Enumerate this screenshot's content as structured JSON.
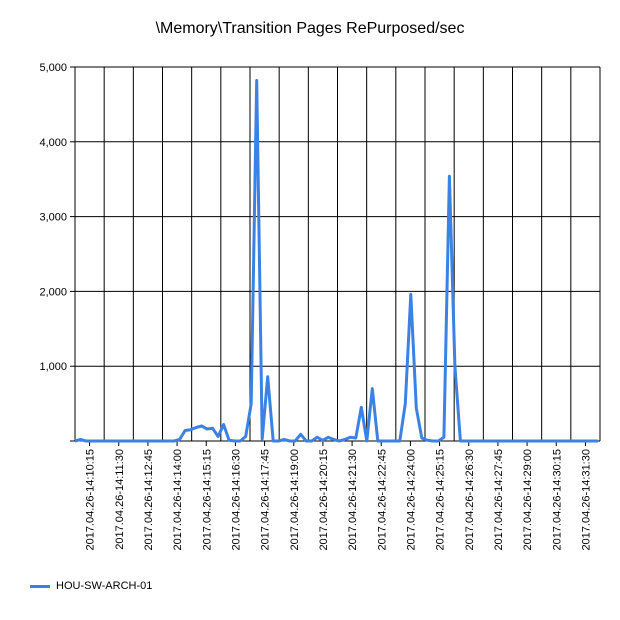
{
  "chart_data": {
    "type": "line",
    "title": "\\Memory\\Transition Pages RePurposed/sec",
    "xlabel": "",
    "ylabel": "",
    "ylim": [
      0,
      5000
    ],
    "y_ticks": [
      "5,000",
      "4,000",
      "3,000",
      "2,000",
      "1,000",
      ""
    ],
    "y_tick_values": [
      5000,
      4000,
      3000,
      2000,
      1000,
      0
    ],
    "x_tick_labels": [
      "2017.04.26-14:10:15",
      "2017.04.26-14:11:30",
      "2017.04.26-14:12:45",
      "2017.04.26-14:14:00",
      "2017.04.26-14:15:15",
      "2017.04.26-14:16:30",
      "2017.04.26-14:17:45",
      "2017.04.26-14:19:00",
      "2017.04.26-14:20:15",
      "2017.04.26-14:21:30",
      "2017.04.26-14:22:45",
      "2017.04.26-14:24:00",
      "2017.04.26-14:25:15",
      "2017.04.26-14:26:30",
      "2017.04.26-14:27:45",
      "2017.04.26-14:29:00",
      "2017.04.26-14:30:15",
      "2017.04.26-14:31:30"
    ],
    "grid": true,
    "legend_position": "bottom-left",
    "series": [
      {
        "name": "HOU-SW-ARCH-01",
        "color": "#3b82e4",
        "values": [
          0,
          20,
          0,
          0,
          0,
          0,
          0,
          0,
          0,
          0,
          0,
          0,
          0,
          0,
          0,
          0,
          0,
          0,
          0,
          20,
          140,
          150,
          180,
          200,
          160,
          170,
          60,
          220,
          10,
          0,
          0,
          60,
          500,
          4820,
          30,
          860,
          0,
          0,
          20,
          0,
          0,
          90,
          0,
          0,
          50,
          10,
          50,
          20,
          0,
          20,
          50,
          40,
          450,
          0,
          700,
          0,
          0,
          0,
          0,
          0,
          500,
          1960,
          440,
          40,
          10,
          0,
          0,
          50,
          3540,
          1000,
          0,
          0,
          0,
          0,
          0,
          0,
          0,
          0,
          0,
          0,
          0,
          0,
          0,
          0,
          0,
          0,
          0,
          0,
          0,
          0,
          0,
          0,
          0,
          0,
          0,
          0
        ]
      }
    ]
  }
}
